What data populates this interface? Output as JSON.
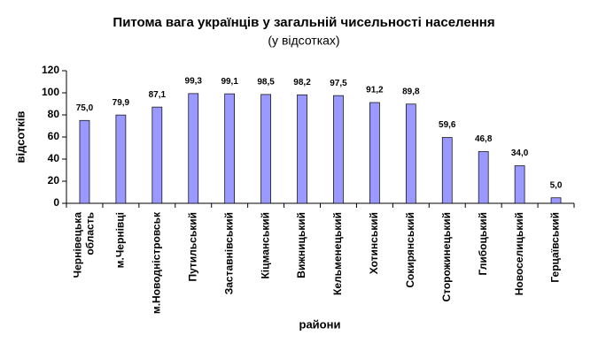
{
  "chart_data": {
    "type": "bar",
    "title": "Питома вага українців у загальній чисельності населення",
    "subtitle": "(у відсотках)",
    "y_label": "відсотків",
    "x_label": "райони",
    "categories": [
      "Чернівецька область",
      "м.Чернівці",
      "м.Новодністровськ",
      "Путильський",
      "Заставнівський",
      "Кіцманський",
      "Вижницький",
      "Кельменецький",
      "Хотинський",
      "Сокирянський",
      "Сторожинецький",
      "Глибоцький",
      "Новоселицький",
      "Герцаївський"
    ],
    "values": [
      75.0,
      79.9,
      87.1,
      99.3,
      99.1,
      98.5,
      98.2,
      97.5,
      91.2,
      89.8,
      59.6,
      46.8,
      34.0,
      5.0
    ],
    "value_labels": [
      "75,0",
      "79,9",
      "87,1",
      "99,3",
      "99,1",
      "98,5",
      "98,2",
      "97,5",
      "91,2",
      "89,8",
      "59,6",
      "46,8",
      "34,0",
      "5,0"
    ],
    "color": "#9999ff",
    "ylim": [
      0,
      120
    ],
    "yticks": [
      0,
      20,
      40,
      60,
      80,
      100,
      120
    ],
    "grid": false
  }
}
